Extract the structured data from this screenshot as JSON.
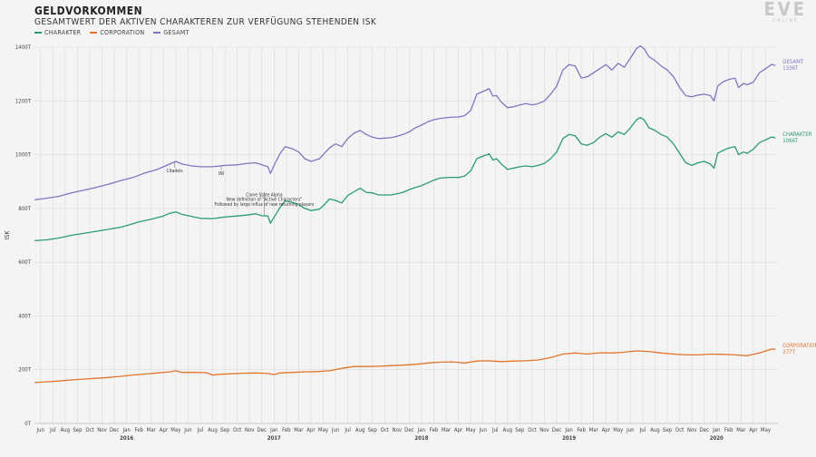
{
  "logo": {
    "main": "EVE",
    "sub": "ONLINE"
  },
  "chart_data": {
    "type": "line",
    "title": "GELDVORKOMMEN",
    "subtitle": "GESAMTWERT DER AKTIVEN CHARAKTEREN ZUR VERFÜGUNG STEHENDEN ISK",
    "ylabel": "ISK",
    "ylim": [
      0,
      1400
    ],
    "yticks": [
      0,
      200,
      400,
      600,
      800,
      1000,
      1200,
      1400
    ],
    "ytick_labels": [
      "0T",
      "200T",
      "400T",
      "600T",
      "800T",
      "1000T",
      "1200T",
      "1400T"
    ],
    "xlim": [
      0,
      60.5
    ],
    "months": [
      "Jun",
      "Jul",
      "Aug",
      "Sep",
      "Oct",
      "Nov",
      "Dec",
      "Jan",
      "Feb",
      "Mar",
      "Apr",
      "May",
      "Jun",
      "Jul",
      "Aug",
      "Sep",
      "Oct",
      "Nov",
      "Dec",
      "Jan",
      "Feb",
      "Mar",
      "Apr",
      "May",
      "Jun",
      "Jul",
      "Aug",
      "Sep",
      "Oct",
      "Nov",
      "Dec",
      "Jan",
      "Feb",
      "Mar",
      "Apr",
      "May",
      "Jun",
      "Jul",
      "Aug",
      "Sep",
      "Oct",
      "Nov",
      "Dec",
      "Jan",
      "Feb",
      "Mar",
      "Apr",
      "May",
      "Jun",
      "Jul",
      "Aug",
      "Sep",
      "Oct",
      "Nov",
      "Dec",
      "Jan",
      "Feb",
      "Mar",
      "Apr",
      "May"
    ],
    "years": [
      {
        "label": "2016",
        "month_index": 7
      },
      {
        "label": "2017",
        "month_index": 19
      },
      {
        "label": "2018",
        "month_index": 31
      },
      {
        "label": "2019",
        "month_index": 43
      },
      {
        "label": "2020",
        "month_index": 55
      }
    ],
    "series": [
      {
        "name": "CHARAKTER",
        "color": "#2a9d6e",
        "end_label": "CHARAKTER",
        "end_value": "1066T",
        "points": [
          [
            0,
            680
          ],
          [
            1,
            683
          ],
          [
            2,
            690
          ],
          [
            3,
            700
          ],
          [
            4,
            707
          ],
          [
            5,
            715
          ],
          [
            6,
            722
          ],
          [
            7,
            730
          ],
          [
            7.8,
            740
          ],
          [
            8.5,
            750
          ],
          [
            9.5,
            760
          ],
          [
            10.5,
            772
          ],
          [
            11,
            782
          ],
          [
            11.5,
            787
          ],
          [
            12,
            778
          ],
          [
            12.8,
            770
          ],
          [
            13.5,
            763
          ],
          [
            14.5,
            762
          ],
          [
            15.5,
            768
          ],
          [
            16.5,
            772
          ],
          [
            17.2,
            775
          ],
          [
            18,
            780
          ],
          [
            18.5,
            773
          ],
          [
            19,
            772
          ],
          [
            19.2,
            745
          ],
          [
            19.6,
            775
          ],
          [
            20,
            805
          ],
          [
            20.4,
            828
          ],
          [
            21,
            822
          ],
          [
            21.5,
            815
          ],
          [
            22,
            800
          ],
          [
            22.5,
            792
          ],
          [
            23.2,
            797
          ],
          [
            23.6,
            815
          ],
          [
            24,
            835
          ],
          [
            24.5,
            830
          ],
          [
            25,
            820
          ],
          [
            25.5,
            848
          ],
          [
            26,
            862
          ],
          [
            26.5,
            875
          ],
          [
            27,
            860
          ],
          [
            27.5,
            858
          ],
          [
            28,
            850
          ],
          [
            29,
            850
          ],
          [
            29.5,
            855
          ],
          [
            30,
            860
          ],
          [
            30.5,
            870
          ],
          [
            31,
            878
          ],
          [
            31.5,
            885
          ],
          [
            32,
            895
          ],
          [
            32.5,
            905
          ],
          [
            33,
            913
          ],
          [
            34,
            916
          ],
          [
            34.5,
            915
          ],
          [
            35,
            920
          ],
          [
            35.5,
            940
          ],
          [
            36,
            985
          ],
          [
            36.5,
            995
          ],
          [
            37,
            1003
          ],
          [
            37.3,
            980
          ],
          [
            37.6,
            985
          ],
          [
            38,
            965
          ],
          [
            38.5,
            945
          ],
          [
            39,
            950
          ],
          [
            39.5,
            955
          ],
          [
            40,
            958
          ],
          [
            40.5,
            955
          ],
          [
            41,
            960
          ],
          [
            41.5,
            968
          ],
          [
            42,
            985
          ],
          [
            42.5,
            1010
          ],
          [
            43,
            1060
          ],
          [
            43.5,
            1075
          ],
          [
            44,
            1070
          ],
          [
            44.5,
            1040
          ],
          [
            45,
            1035
          ],
          [
            45.5,
            1045
          ],
          [
            46,
            1065
          ],
          [
            46.5,
            1078
          ],
          [
            47,
            1065
          ],
          [
            47.5,
            1085
          ],
          [
            48,
            1075
          ],
          [
            48.5,
            1100
          ],
          [
            49,
            1130
          ],
          [
            49.3,
            1138
          ],
          [
            49.6,
            1130
          ],
          [
            50,
            1100
          ],
          [
            50.5,
            1090
          ],
          [
            51,
            1075
          ],
          [
            51.5,
            1065
          ],
          [
            52,
            1040
          ],
          [
            52.5,
            1005
          ],
          [
            53,
            970
          ],
          [
            53.5,
            960
          ],
          [
            54,
            970
          ],
          [
            54.5,
            975
          ],
          [
            55,
            965
          ],
          [
            55.3,
            950
          ],
          [
            55.6,
            1005
          ],
          [
            56,
            1015
          ],
          [
            56.5,
            1025
          ],
          [
            57,
            1030
          ],
          [
            57.3,
            1000
          ],
          [
            57.7,
            1010
          ],
          [
            58,
            1005
          ],
          [
            58.5,
            1020
          ],
          [
            59,
            1045
          ],
          [
            59.5,
            1055
          ],
          [
            60,
            1066
          ],
          [
            60.3,
            1062
          ]
        ]
      },
      {
        "name": "CORPORATION",
        "color": "#e0752a",
        "end_label": "CORPORATION",
        "end_value": "277T",
        "points": [
          [
            0,
            152
          ],
          [
            1,
            155
          ],
          [
            2,
            158
          ],
          [
            3,
            162
          ],
          [
            4,
            165
          ],
          [
            5,
            168
          ],
          [
            6,
            171
          ],
          [
            7,
            175
          ],
          [
            8,
            180
          ],
          [
            9,
            184
          ],
          [
            10,
            188
          ],
          [
            11,
            192
          ],
          [
            11.5,
            196
          ],
          [
            12,
            190
          ],
          [
            13,
            190
          ],
          [
            14,
            189
          ],
          [
            14.5,
            180
          ],
          [
            15,
            183
          ],
          [
            16,
            185
          ],
          [
            17,
            187
          ],
          [
            18,
            188
          ],
          [
            19,
            186
          ],
          [
            19.5,
            182
          ],
          [
            20,
            188
          ],
          [
            21,
            190
          ],
          [
            22,
            192
          ],
          [
            23,
            193
          ],
          [
            24,
            196
          ],
          [
            25,
            205
          ],
          [
            26,
            212
          ],
          [
            27,
            212
          ],
          [
            28,
            213
          ],
          [
            29,
            215
          ],
          [
            30,
            217
          ],
          [
            31,
            220
          ],
          [
            32,
            225
          ],
          [
            33,
            228
          ],
          [
            34,
            229
          ],
          [
            35,
            225
          ],
          [
            36,
            232
          ],
          [
            37,
            233
          ],
          [
            38,
            230
          ],
          [
            39,
            232
          ],
          [
            40,
            233
          ],
          [
            41,
            236
          ],
          [
            42,
            245
          ],
          [
            43,
            258
          ],
          [
            44,
            262
          ],
          [
            45,
            258
          ],
          [
            46,
            263
          ],
          [
            47,
            262
          ],
          [
            48,
            265
          ],
          [
            49,
            270
          ],
          [
            50,
            268
          ],
          [
            51,
            262
          ],
          [
            52,
            258
          ],
          [
            53,
            255
          ],
          [
            54,
            255
          ],
          [
            55,
            258
          ],
          [
            56,
            257
          ],
          [
            57,
            255
          ],
          [
            58,
            252
          ],
          [
            59,
            262
          ],
          [
            60,
            277
          ],
          [
            60.3,
            276
          ]
        ]
      },
      {
        "name": "GESAMT",
        "color": "#8474c0",
        "end_label": "GESAMT",
        "end_value": "1336T",
        "points": [
          [
            0,
            832
          ],
          [
            1,
            838
          ],
          [
            2,
            845
          ],
          [
            3,
            858
          ],
          [
            4,
            868
          ],
          [
            5,
            878
          ],
          [
            6,
            890
          ],
          [
            7,
            903
          ],
          [
            8,
            915
          ],
          [
            9,
            932
          ],
          [
            10,
            945
          ],
          [
            11,
            965
          ],
          [
            11.5,
            975
          ],
          [
            12,
            965
          ],
          [
            12.8,
            958
          ],
          [
            13.5,
            955
          ],
          [
            14.5,
            955
          ],
          [
            15.5,
            960
          ],
          [
            16.5,
            962
          ],
          [
            17.2,
            967
          ],
          [
            18,
            970
          ],
          [
            18.5,
            962
          ],
          [
            19,
            955
          ],
          [
            19.2,
            930
          ],
          [
            19.6,
            970
          ],
          [
            20,
            1005
          ],
          [
            20.4,
            1030
          ],
          [
            21,
            1022
          ],
          [
            21.5,
            1010
          ],
          [
            22,
            985
          ],
          [
            22.5,
            975
          ],
          [
            23.2,
            985
          ],
          [
            23.6,
            1005
          ],
          [
            24,
            1025
          ],
          [
            24.5,
            1040
          ],
          [
            25,
            1030
          ],
          [
            25.5,
            1060
          ],
          [
            26,
            1080
          ],
          [
            26.5,
            1090
          ],
          [
            27,
            1075
          ],
          [
            27.5,
            1065
          ],
          [
            28,
            1060
          ],
          [
            29,
            1063
          ],
          [
            29.5,
            1068
          ],
          [
            30,
            1075
          ],
          [
            30.5,
            1085
          ],
          [
            31,
            1100
          ],
          [
            31.5,
            1110
          ],
          [
            32,
            1122
          ],
          [
            32.5,
            1130
          ],
          [
            33,
            1135
          ],
          [
            34,
            1140
          ],
          [
            34.5,
            1140
          ],
          [
            35,
            1145
          ],
          [
            35.5,
            1165
          ],
          [
            36,
            1225
          ],
          [
            36.5,
            1235
          ],
          [
            37,
            1245
          ],
          [
            37.3,
            1218
          ],
          [
            37.6,
            1220
          ],
          [
            38,
            1195
          ],
          [
            38.5,
            1175
          ],
          [
            39,
            1178
          ],
          [
            39.5,
            1185
          ],
          [
            40,
            1190
          ],
          [
            40.5,
            1185
          ],
          [
            41,
            1190
          ],
          [
            41.5,
            1200
          ],
          [
            42,
            1225
          ],
          [
            42.5,
            1255
          ],
          [
            43,
            1315
          ],
          [
            43.5,
            1335
          ],
          [
            44,
            1330
          ],
          [
            44.5,
            1285
          ],
          [
            45,
            1290
          ],
          [
            45.5,
            1305
          ],
          [
            46,
            1320
          ],
          [
            46.5,
            1335
          ],
          [
            47,
            1315
          ],
          [
            47.5,
            1340
          ],
          [
            48,
            1325
          ],
          [
            48.5,
            1360
          ],
          [
            49,
            1395
          ],
          [
            49.3,
            1405
          ],
          [
            49.6,
            1395
          ],
          [
            50,
            1365
          ],
          [
            50.5,
            1350
          ],
          [
            51,
            1330
          ],
          [
            51.5,
            1315
          ],
          [
            52,
            1290
          ],
          [
            52.5,
            1250
          ],
          [
            53,
            1220
          ],
          [
            53.5,
            1215
          ],
          [
            54,
            1222
          ],
          [
            54.5,
            1225
          ],
          [
            55,
            1220
          ],
          [
            55.3,
            1200
          ],
          [
            55.6,
            1255
          ],
          [
            56,
            1270
          ],
          [
            56.5,
            1280
          ],
          [
            57,
            1285
          ],
          [
            57.3,
            1250
          ],
          [
            57.7,
            1265
          ],
          [
            58,
            1260
          ],
          [
            58.5,
            1270
          ],
          [
            59,
            1305
          ],
          [
            59.5,
            1320
          ],
          [
            60,
            1336
          ],
          [
            60.3,
            1332
          ]
        ]
      }
    ],
    "annotations": [
      {
        "text": "Citadels",
        "x": 11.4,
        "series": "GESAMT",
        "ly": 935
      },
      {
        "text": "INI",
        "x": 15.2,
        "series": "GESAMT",
        "ly": 925
      },
      {
        "text": "Clone State Alpha",
        "x": 18.7,
        "series": "CHARAKTER",
        "ly": 845
      },
      {
        "text": "New definition of \"Active Characters\"",
        "x": 18.7,
        "series": "CHARAKTER",
        "ly": 828
      },
      {
        "text": "Followed by large influx of new returning players",
        "x": 18.7,
        "series": "CHARAKTER",
        "ly": 810
      }
    ]
  }
}
